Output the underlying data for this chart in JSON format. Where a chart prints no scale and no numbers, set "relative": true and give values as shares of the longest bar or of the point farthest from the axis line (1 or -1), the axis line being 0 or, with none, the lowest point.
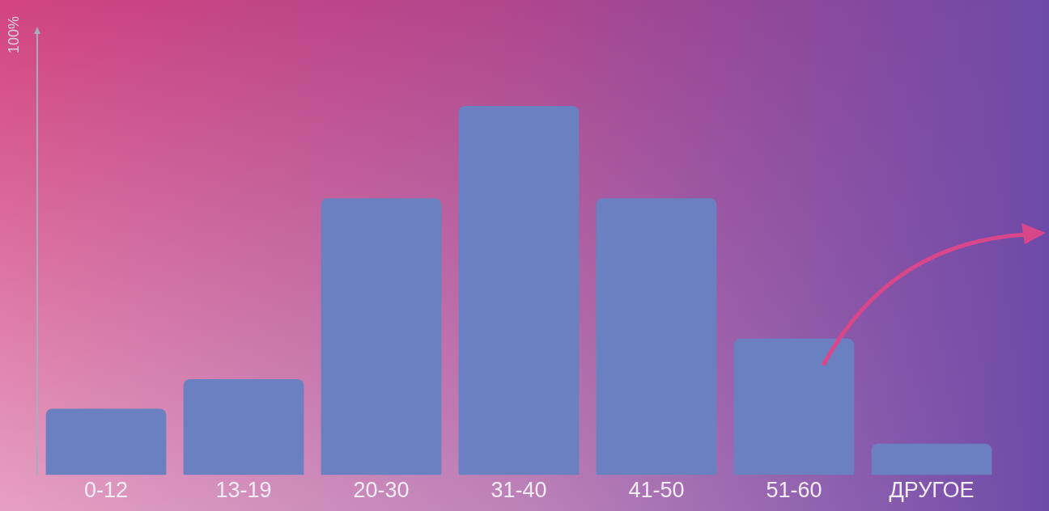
{
  "chart_data": {
    "type": "bar",
    "relative": true,
    "ylabel": "100%",
    "categories": [
      "0-12",
      "13-19",
      "20-30",
      "31-40",
      "41-50",
      "51-60",
      "ДРУГОЕ"
    ],
    "values": [
      0.18,
      0.26,
      0.75,
      1,
      0.75,
      0.37,
      0.085
    ],
    "color": "#6b80c0",
    "grid": false,
    "legend": false
  }
}
